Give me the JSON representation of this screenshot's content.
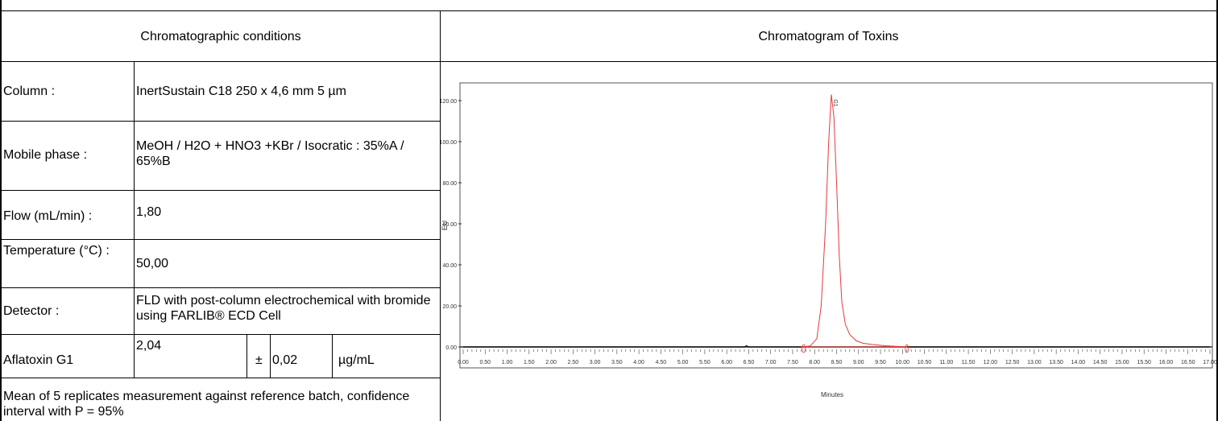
{
  "headers": {
    "left": "Chromatographic conditions",
    "right": "Chromatogram of Toxins"
  },
  "conditions": [
    {
      "label": "Column :",
      "value": "InertSustain C18 250 x 4,6 mm 5 µm"
    },
    {
      "label": "Mobile phase :",
      "value": "MeOH / H2O + HNO3 +KBr / Isocratic : 35%A / 65%B"
    },
    {
      "label": "Flow (mL/min) :",
      "value": "1,80"
    },
    {
      "label": "Temperature (°C) :",
      "value": "50,00"
    },
    {
      "label": "Detector :",
      "value": "FLD with post-column electrochemical with bromide using FARLIB® ECD Cell"
    }
  ],
  "result": {
    "analyte": "Aflatoxin G1",
    "value": "2,04",
    "pm": "±",
    "uncertainty": "0,02",
    "unit": "µg/mL"
  },
  "footnote": "Mean of 5 replicates measurement against reference batch, confidence interval with P = 95%",
  "chart_data": {
    "type": "line",
    "xlabel": "Minutes",
    "ylabel": "EU",
    "xlim": [
      0,
      17
    ],
    "ylim": [
      -5,
      135
    ],
    "x_ticks": [
      "0.00",
      "0.50",
      "1.00",
      "1.50",
      "2.00",
      "2.50",
      "3.00",
      "3.50",
      "4.00",
      "4.50",
      "5.00",
      "5.50",
      "6.00",
      "6.50",
      "7.00",
      "7.50",
      "8.00",
      "8.50",
      "9.00",
      "9.50",
      "10.00",
      "10.50",
      "11.00",
      "11.50",
      "12.00",
      "12.50",
      "13.00",
      "13.50",
      "14.00",
      "14.50",
      "15.00",
      "15.50",
      "16.00",
      "16.50",
      "17.00"
    ],
    "y_ticks": [
      "0.00",
      "20.00",
      "40.00",
      "60.00",
      "80.00",
      "100.00",
      "120.00"
    ],
    "peak_label": "G1",
    "series": [
      {
        "color": "#000000",
        "x": [
          0,
          6.4,
          6.45,
          6.5,
          7.6,
          17
        ],
        "y": [
          0,
          0,
          0.6,
          0,
          0,
          0
        ]
      },
      {
        "color": "#e8383a",
        "x": [
          7.7,
          7.9,
          8.05,
          8.15,
          8.25,
          8.32,
          8.38,
          8.44,
          8.5,
          8.56,
          8.62,
          8.7,
          8.8,
          8.95,
          9.1,
          9.3,
          9.6,
          10.1
        ],
        "y": [
          0,
          0.5,
          4,
          20,
          60,
          100,
          123,
          112,
          80,
          45,
          22,
          11,
          6,
          3,
          1.8,
          1.2,
          0.6,
          0
        ]
      }
    ],
    "baseline_markers": [
      7.75,
      10.1
    ]
  }
}
